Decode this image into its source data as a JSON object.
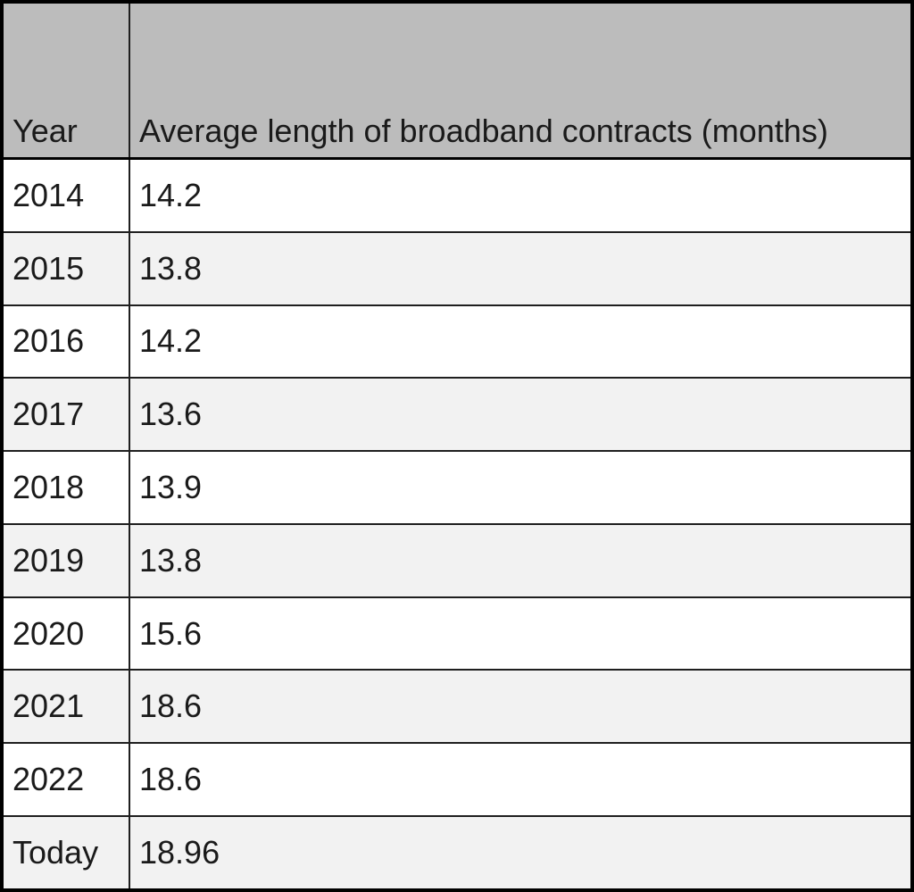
{
  "chart_data": {
    "type": "table",
    "title": "Average length of broadband contracts",
    "columns": [
      "Year",
      "Average length of broadband contracts (months)"
    ],
    "categories": [
      "2014",
      "2015",
      "2016",
      "2017",
      "2018",
      "2019",
      "2020",
      "2021",
      "2022",
      "Today"
    ],
    "values": [
      14.2,
      13.8,
      14.2,
      13.6,
      13.9,
      13.8,
      15.6,
      18.6,
      18.6,
      18.96
    ]
  },
  "table": {
    "header": {
      "year": "Year",
      "value": "Average length of broadband contracts (months)"
    },
    "rows": [
      {
        "year": "2014",
        "value": "14.2"
      },
      {
        "year": "2015",
        "value": "13.8"
      },
      {
        "year": "2016",
        "value": "14.2"
      },
      {
        "year": "2017",
        "value": "13.6"
      },
      {
        "year": "2018",
        "value": "13.9"
      },
      {
        "year": "2019",
        "value": "13.8"
      },
      {
        "year": "2020",
        "value": "15.6"
      },
      {
        "year": "2021",
        "value": "18.6"
      },
      {
        "year": "2022",
        "value": "18.6"
      },
      {
        "year": "Today",
        "value": "18.96"
      }
    ]
  },
  "colors": {
    "header_bg": "#bcbcbc",
    "row_bg": "#ffffff",
    "row_alt_bg": "#f2f2f2",
    "border": "#1f1f1f",
    "outer_border": "#000000",
    "text": "#1a1a1a"
  }
}
